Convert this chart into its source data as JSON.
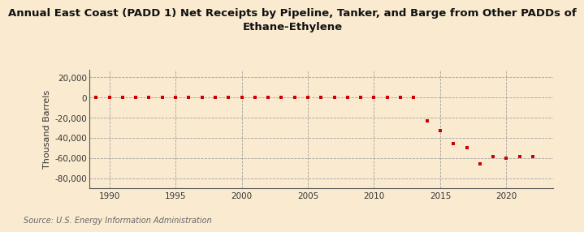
{
  "title": "Annual East Coast (PADD 1) Net Receipts by Pipeline, Tanker, and Barge from Other PADDs of\nEthane-Ethylene",
  "ylabel": "Thousand Barrels",
  "source": "Source: U.S. Energy Information Administration",
  "background_color": "#faebd0",
  "plot_background_color": "#faebd0",
  "dot_color": "#cc0000",
  "xlim": [
    1988.5,
    2023.5
  ],
  "ylim": [
    -90000,
    27000
  ],
  "yticks": [
    20000,
    0,
    -20000,
    -40000,
    -60000,
    -80000
  ],
  "xticks": [
    1990,
    1995,
    2000,
    2005,
    2010,
    2015,
    2020
  ],
  "data": {
    "1989": -50,
    "1990": -50,
    "1991": -50,
    "1992": -50,
    "1993": -50,
    "1994": -50,
    "1995": -50,
    "1996": -50,
    "1997": -50,
    "1998": -50,
    "1999": -50,
    "2000": -50,
    "2001": -50,
    "2002": -50,
    "2003": -50,
    "2004": -50,
    "2005": -50,
    "2006": -50,
    "2007": -50,
    "2008": -50,
    "2009": -50,
    "2010": -50,
    "2011": -50,
    "2012": -50,
    "2013": -100,
    "2014": -23000,
    "2015": -33000,
    "2016": -46000,
    "2017": -50000,
    "2018": -66000,
    "2019": -59000,
    "2020": -60000,
    "2021": -59000,
    "2022": -59000
  }
}
